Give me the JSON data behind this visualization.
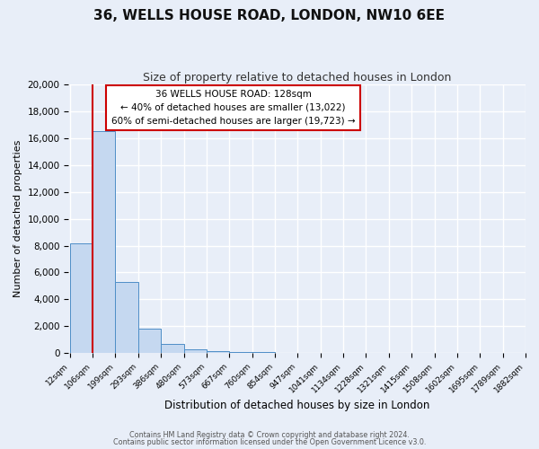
{
  "title": "36, WELLS HOUSE ROAD, LONDON, NW10 6EE",
  "subtitle": "Size of property relative to detached houses in London",
  "xlabel": "Distribution of detached houses by size in London",
  "ylabel": "Number of detached properties",
  "bar_values": [
    8200,
    16500,
    5300,
    1800,
    700,
    300,
    150,
    100,
    50,
    0,
    0,
    0,
    0,
    0,
    0,
    0,
    0,
    0,
    0,
    0
  ],
  "bin_labels": [
    "12sqm",
    "106sqm",
    "199sqm",
    "293sqm",
    "386sqm",
    "480sqm",
    "573sqm",
    "667sqm",
    "760sqm",
    "854sqm",
    "947sqm",
    "1041sqm",
    "1134sqm",
    "1228sqm",
    "1321sqm",
    "1415sqm",
    "1508sqm",
    "1602sqm",
    "1695sqm",
    "1789sqm",
    "1882sqm"
  ],
  "bar_color": "#c5d8f0",
  "bar_edge_color": "#4e8ec7",
  "property_label": "36 WELLS HOUSE ROAD: 128sqm",
  "pct_smaller": 40,
  "n_smaller": "13,022",
  "pct_larger": 60,
  "n_larger": "19,723",
  "ylim": [
    0,
    20000
  ],
  "yticks": [
    0,
    2000,
    4000,
    6000,
    8000,
    10000,
    12000,
    14000,
    16000,
    18000,
    20000
  ],
  "footer1": "Contains HM Land Registry data © Crown copyright and database right 2024.",
  "footer2": "Contains public sector information licensed under the Open Government Licence v3.0.",
  "bg_color": "#e8eef8",
  "plot_bg_color": "#e8eef8",
  "grid_color": "#ffffff",
  "annotation_box_color": "#ffffff",
  "annotation_box_edge": "#cc0000",
  "red_line_color": "#cc0000"
}
